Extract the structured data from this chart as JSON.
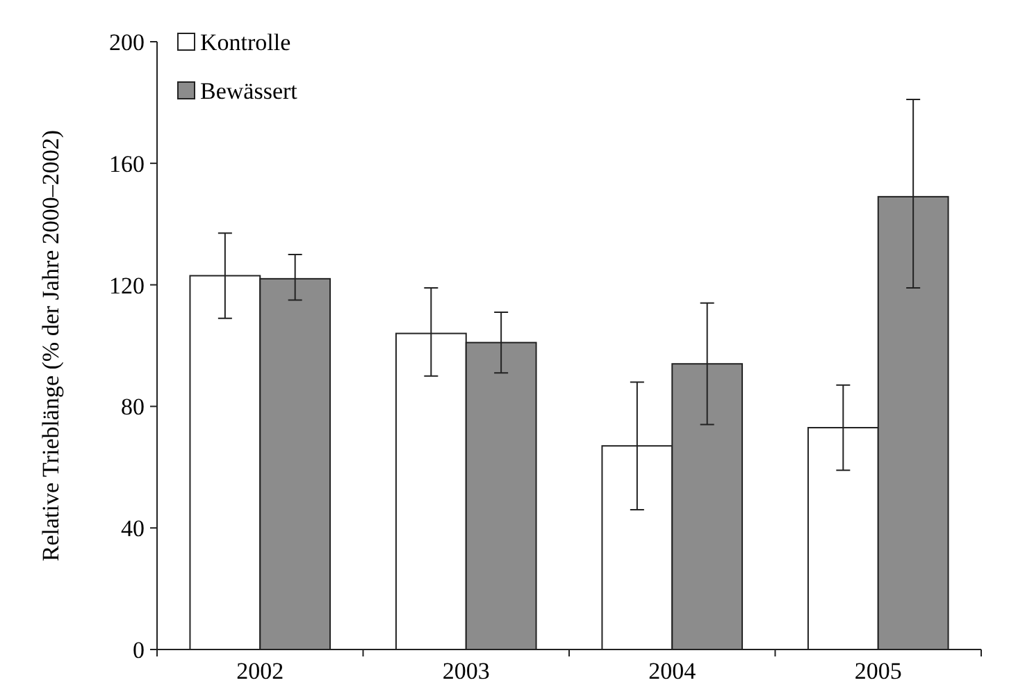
{
  "chart_data": {
    "type": "bar",
    "ylabel": "Relative Trieblänge (% der Jahre 2000–2002)",
    "categories": [
      "2002",
      "2003",
      "2004",
      "2005"
    ],
    "series": [
      {
        "name": "Kontrolle",
        "color": "#ffffff",
        "values": [
          123,
          104,
          67,
          73
        ],
        "errors": [
          [
            109,
            137
          ],
          [
            90,
            119
          ],
          [
            46,
            88
          ],
          [
            59,
            87
          ]
        ]
      },
      {
        "name": "Bewässert",
        "color": "#8c8c8c",
        "values": [
          122,
          101,
          94,
          149
        ],
        "errors": [
          [
            115,
            130
          ],
          [
            91,
            111
          ],
          [
            74,
            114
          ],
          [
            119,
            181
          ]
        ]
      }
    ],
    "ylim": [
      0,
      200
    ],
    "yticks": [
      0,
      40,
      80,
      120,
      160,
      200
    ],
    "legend": "top left",
    "grid": false
  }
}
